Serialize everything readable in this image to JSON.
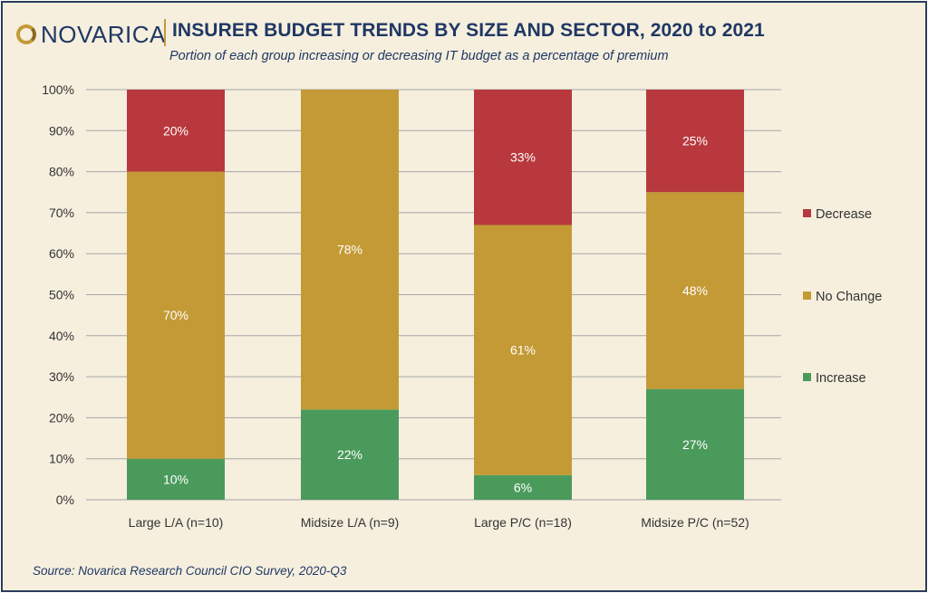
{
  "header": {
    "logo_text": "NOVARICA",
    "title": "INSURER BUDGET TRENDS BY SIZE AND SECTOR, 2020 to 2021",
    "subtitle": "Portion of each group increasing or decreasing IT budget as a percentage of premium"
  },
  "footer": {
    "source": "Source: Novarica Research Council CIO Survey, 2020-Q3"
  },
  "colors": {
    "increase": "#4a9a5c",
    "no_change": "#c39a35",
    "decrease": "#b8383d",
    "background": "#f6efde",
    "brand_navy": "#1f3864"
  },
  "chart_data": {
    "type": "bar",
    "stacked": true,
    "categories": [
      "Large L/A (n=10)",
      "Midsize L/A (n=9)",
      "Large P/C (n=18)",
      "Midsize P/C (n=52)"
    ],
    "series": [
      {
        "name": "Increase",
        "values": [
          10,
          22,
          6,
          27
        ],
        "labels": [
          "10%",
          "22%",
          "6%",
          "27%"
        ]
      },
      {
        "name": "No Change",
        "values": [
          70,
          78,
          61,
          48
        ],
        "labels": [
          "70%",
          "78%",
          "61%",
          "48%"
        ]
      },
      {
        "name": "Decrease",
        "values": [
          20,
          0,
          33,
          25
        ],
        "labels": [
          "20%",
          "",
          "33%",
          "25%"
        ]
      }
    ],
    "y_ticks": [
      "0%",
      "10%",
      "20%",
      "30%",
      "40%",
      "50%",
      "60%",
      "70%",
      "80%",
      "90%",
      "100%"
    ],
    "ylim": [
      0,
      100
    ],
    "grid": true,
    "legend_position": "right",
    "legend_order": [
      "Decrease",
      "No Change",
      "Increase"
    ]
  }
}
